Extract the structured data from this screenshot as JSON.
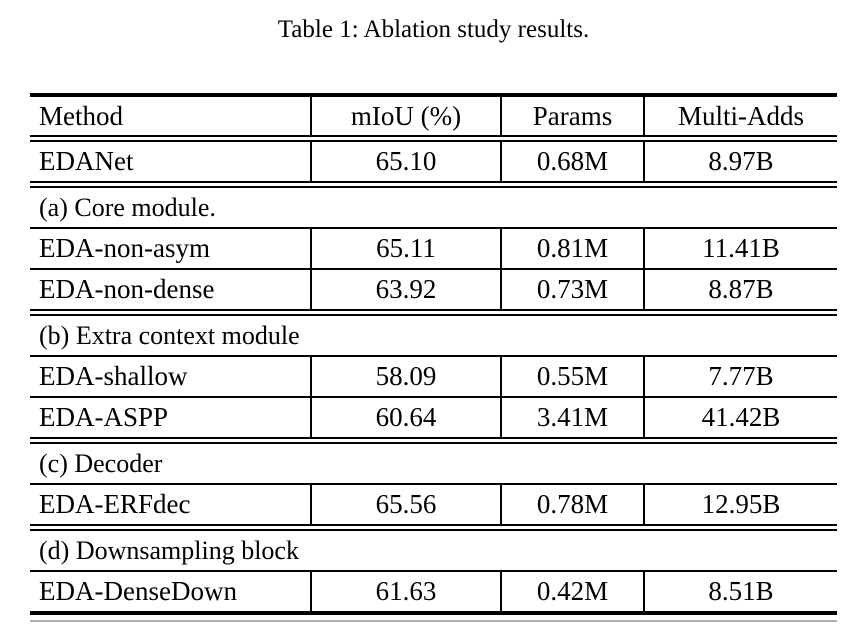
{
  "title": "Table 1: Ablation study results.",
  "table": {
    "headers": [
      "Method",
      "mIoU (%)",
      "Params",
      "Multi-Adds"
    ],
    "rows": [
      {
        "method": "EDANet",
        "miou": "65.10",
        "params": "0.68M",
        "multi_adds": "8.97B"
      }
    ],
    "sections": [
      {
        "label": "(a) Core module.",
        "rows": [
          {
            "method": "EDA-non-asym",
            "miou": "65.11",
            "params": "0.81M",
            "multi_adds": "11.41B"
          },
          {
            "method": "EDA-non-dense",
            "miou": "63.92",
            "params": "0.73M",
            "multi_adds": "8.87B"
          }
        ]
      },
      {
        "label": "(b) Extra context module",
        "rows": [
          {
            "method": "EDA-shallow",
            "miou": "58.09",
            "params": "0.55M",
            "multi_adds": "7.77B"
          },
          {
            "method": "EDA-ASPP",
            "miou": "60.64",
            "params": "3.41M",
            "multi_adds": "41.42B"
          }
        ]
      },
      {
        "label": "(c) Decoder",
        "rows": [
          {
            "method": "EDA-ERFdec",
            "miou": "65.56",
            "params": "0.78M",
            "multi_adds": "12.95B"
          }
        ]
      },
      {
        "label": "(d) Downsampling block",
        "rows": [
          {
            "method": "EDA-DenseDown",
            "miou": "61.63",
            "params": "0.42M",
            "multi_adds": "8.51B"
          }
        ]
      }
    ]
  }
}
